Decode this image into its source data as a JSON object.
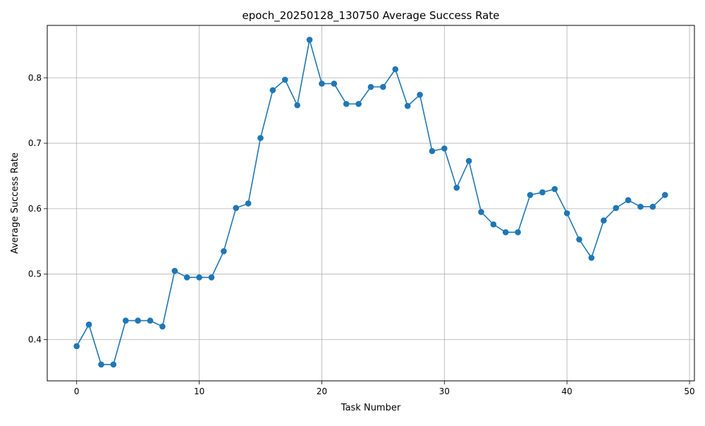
{
  "chart_data": {
    "type": "line",
    "title": "epoch_20250128_130750 Average Success Rate",
    "xlabel": "Task Number",
    "ylabel": "Average Success Rate",
    "xlim": [
      -2.4,
      50.4
    ],
    "ylim": [
      0.337,
      0.88
    ],
    "xticks": [
      0,
      10,
      20,
      30,
      40,
      50
    ],
    "yticks": [
      0.4,
      0.5,
      0.6,
      0.7,
      0.8
    ],
    "grid": true,
    "line_color": "#1f77b4",
    "marker": "circle",
    "series": [
      {
        "x": [
          0,
          1,
          2,
          3,
          4,
          5,
          6,
          7,
          8,
          9,
          10,
          11,
          12,
          13,
          14,
          15,
          16,
          17,
          18,
          19,
          20,
          21,
          22,
          23,
          24,
          25,
          26,
          27,
          28,
          29,
          30,
          31,
          32,
          33,
          34,
          35,
          36,
          37,
          38,
          39,
          40,
          41,
          42,
          43,
          44,
          45,
          46,
          47,
          48
        ],
        "values": [
          0.39,
          0.423,
          0.362,
          0.362,
          0.429,
          0.429,
          0.429,
          0.42,
          0.505,
          0.495,
          0.495,
          0.495,
          0.535,
          0.601,
          0.608,
          0.708,
          0.781,
          0.797,
          0.758,
          0.858,
          0.791,
          0.791,
          0.76,
          0.76,
          0.786,
          0.786,
          0.813,
          0.757,
          0.774,
          0.688,
          0.692,
          0.632,
          0.673,
          0.595,
          0.576,
          0.564,
          0.564,
          0.621,
          0.625,
          0.63,
          0.593,
          0.553,
          0.525,
          0.582,
          0.601,
          0.613,
          0.603,
          0.603,
          0.621
        ]
      }
    ]
  }
}
